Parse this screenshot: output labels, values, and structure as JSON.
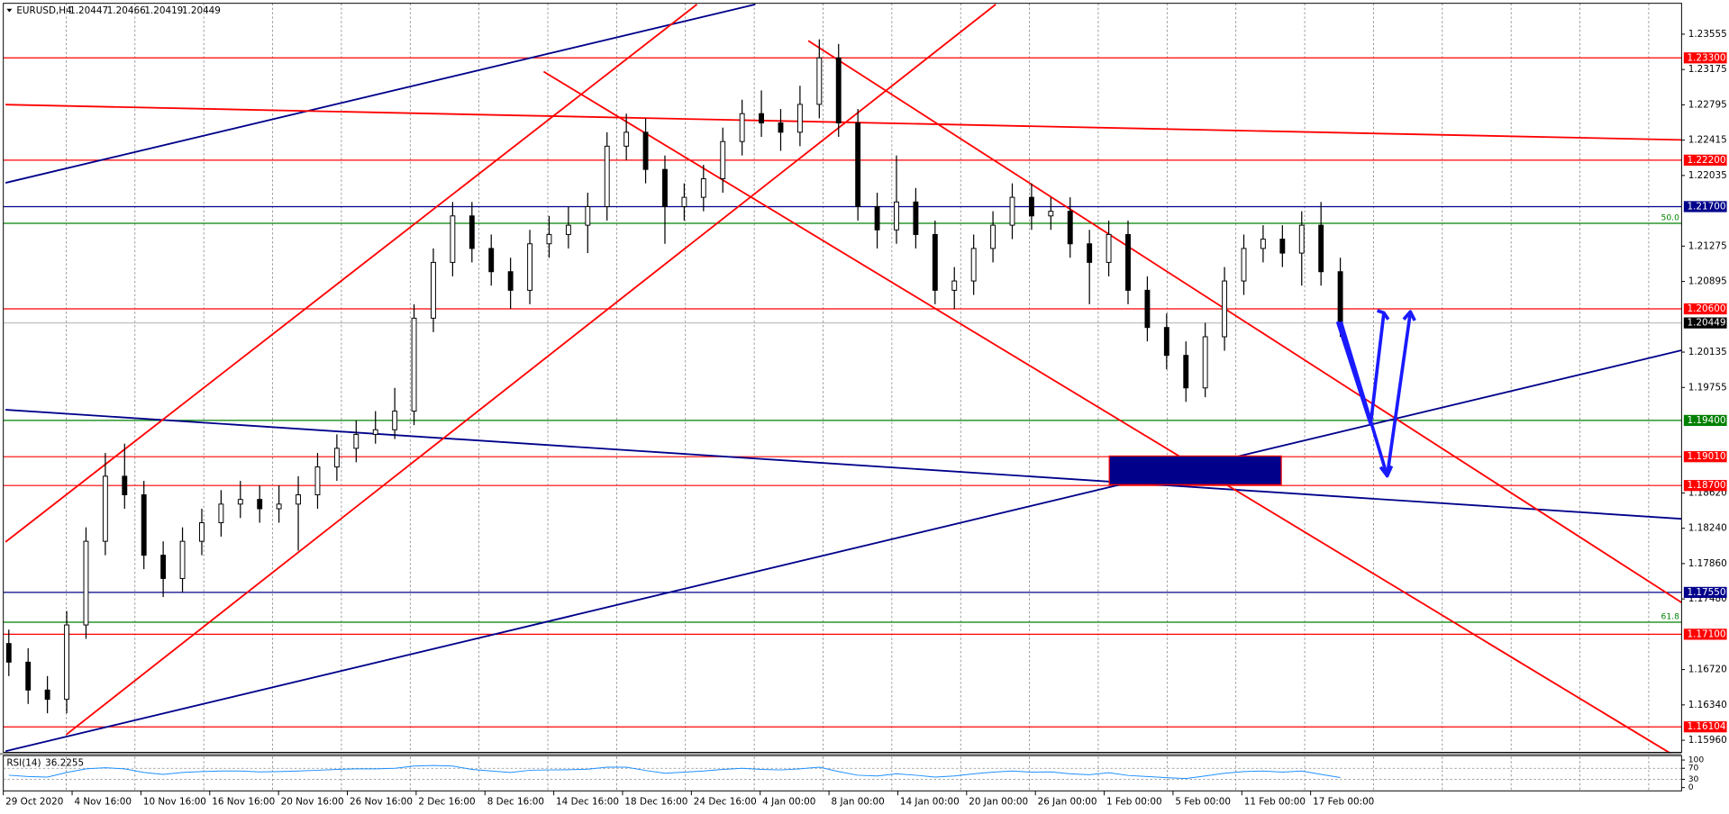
{
  "chart_data": {
    "type": "candlestick",
    "symbol": "EURUSD,H4",
    "quote": [
      1.20447,
      1.20466,
      1.20419,
      1.20449
    ],
    "open": [
      1.17,
      1.168,
      1.165,
      1.164,
      1.172,
      1.181,
      1.188,
      1.186,
      1.1795,
      1.177,
      1.181,
      1.183,
      1.185,
      1.1855,
      1.1845,
      1.185,
      1.186,
      1.189,
      1.191,
      1.1925,
      1.193,
      1.195,
      1.205,
      1.211,
      1.216,
      1.2125,
      1.21,
      1.208,
      1.213,
      1.214,
      1.215,
      1.217,
      1.2235,
      1.225,
      1.221,
      1.217,
      1.218,
      1.22,
      1.224,
      1.227,
      1.226,
      1.225,
      1.228,
      1.233,
      1.226,
      1.217,
      1.2145,
      1.2175,
      1.214,
      1.208,
      1.209,
      1.2125,
      1.215,
      1.218,
      1.216,
      1.2165,
      1.213,
      1.211,
      1.214,
      1.208,
      1.204,
      1.201,
      1.1975,
      1.203,
      1.209,
      1.2125,
      1.2135,
      1.212,
      1.215,
      1.21
    ],
    "high": [
      1.1715,
      1.1695,
      1.1665,
      1.1735,
      1.1825,
      1.1905,
      1.1915,
      1.1875,
      1.181,
      1.1825,
      1.1845,
      1.1865,
      1.1875,
      1.187,
      1.187,
      1.188,
      1.1905,
      1.1925,
      1.194,
      1.195,
      1.1975,
      1.2065,
      1.2125,
      1.2175,
      1.2175,
      1.214,
      1.2115,
      1.2145,
      1.216,
      1.217,
      1.2185,
      1.225,
      1.227,
      1.2265,
      1.2225,
      1.2195,
      1.2215,
      1.2255,
      1.2285,
      1.2295,
      1.2275,
      1.23,
      1.235,
      1.2345,
      1.2275,
      1.2185,
      1.2225,
      1.219,
      1.2155,
      1.2105,
      1.214,
      1.2165,
      1.2195,
      1.2195,
      1.218,
      1.218,
      1.2145,
      1.2155,
      1.2155,
      1.2095,
      1.2055,
      1.2025,
      1.2045,
      1.2105,
      1.214,
      1.215,
      1.215,
      1.2165,
      1.2175,
      1.2115
    ],
    "low": [
      1.1665,
      1.1635,
      1.1625,
      1.1625,
      1.1705,
      1.1795,
      1.1845,
      1.178,
      1.175,
      1.1755,
      1.1795,
      1.1815,
      1.1835,
      1.183,
      1.183,
      1.18,
      1.1845,
      1.1875,
      1.1895,
      1.1915,
      1.192,
      1.1935,
      1.2035,
      1.2095,
      1.211,
      1.2085,
      1.206,
      1.2065,
      1.2115,
      1.2125,
      1.212,
      1.2155,
      1.222,
      1.2195,
      1.213,
      1.2155,
      1.2165,
      1.2185,
      1.2225,
      1.2245,
      1.223,
      1.2235,
      1.2265,
      1.2245,
      1.2155,
      1.2125,
      1.213,
      1.2125,
      1.2065,
      1.206,
      1.2075,
      1.211,
      1.2135,
      1.2145,
      1.2145,
      1.2115,
      1.2065,
      1.2095,
      1.2065,
      1.2025,
      1.1995,
      1.196,
      1.1965,
      1.2015,
      1.2075,
      1.211,
      1.2105,
      1.2085,
      1.2085,
      1.203
    ],
    "close": [
      1.168,
      1.165,
      1.164,
      1.172,
      1.181,
      1.188,
      1.186,
      1.1795,
      1.177,
      1.181,
      1.183,
      1.185,
      1.1855,
      1.1845,
      1.185,
      1.186,
      1.189,
      1.191,
      1.1925,
      1.193,
      1.195,
      1.205,
      1.211,
      1.216,
      1.2125,
      1.21,
      1.208,
      1.213,
      1.214,
      1.215,
      1.217,
      1.2235,
      1.225,
      1.221,
      1.217,
      1.218,
      1.22,
      1.224,
      1.227,
      1.226,
      1.225,
      1.228,
      1.233,
      1.226,
      1.217,
      1.2145,
      1.2175,
      1.214,
      1.208,
      1.209,
      1.2125,
      1.215,
      1.218,
      1.216,
      1.2165,
      1.213,
      1.211,
      1.214,
      1.208,
      1.204,
      1.201,
      1.1975,
      1.203,
      1.209,
      1.2125,
      1.2135,
      1.212,
      1.215,
      1.21,
      1.2045
    ],
    "color_up": "#ffffff",
    "color_down": "#000000",
    "ylim": [
      1.1583,
      1.23887
    ],
    "yticks": [
      1.23555,
      1.23175,
      1.22795,
      1.22415,
      1.22035,
      1.21275,
      1.20895,
      1.20135,
      1.19755,
      {
        "value": 1.1862,
        "label": "1.18620"
      },
      {
        "value": 1.1824,
        "label": "1.18240"
      },
      {
        "value": 1.1786,
        "label": "1.17860"
      },
      {
        "value": 1.1748,
        "label": "1.17480"
      },
      {
        "value": 1.1672,
        "label": "1.16720"
      },
      {
        "value": 1.1634,
        "label": "1.16340"
      },
      {
        "value": 1.1596,
        "label": "1.15960"
      }
    ],
    "levels": [
      {
        "price": {
          "value": 1.233,
          "label": "1.23300"
        },
        "color": "#ff0000"
      },
      {
        "price": {
          "value": 1.222,
          "label": "1.22200"
        },
        "color": "#ff0000"
      },
      {
        "price": {
          "value": 1.217,
          "label": "1.21700"
        },
        "color": "#00008b"
      },
      {
        "price": {
          "value": 1.206,
          "label": "1.20600"
        },
        "color": "#ff0000"
      },
      {
        "price": 1.20449,
        "color": "#000000"
      },
      {
        "price": {
          "value": 1.194,
          "label": "1.19400"
        },
        "color": "#008000"
      },
      {
        "price": {
          "value": 1.1901,
          "label": "1.19010"
        },
        "color": "#ff0000"
      },
      {
        "price": {
          "value": 1.187,
          "label": "1.18700"
        },
        "color": "#ff0000"
      },
      {
        "price": {
          "value": 1.1755,
          "label": "1.17550"
        },
        "color": "#00008b"
      },
      {
        "price": {
          "value": 1.171,
          "label": "1.17100"
        },
        "color": "#ff0000"
      },
      {
        "price": 1.16104,
        "color": "#ff0000"
      }
    ],
    "fib_levels": [
      {
        "price": 1.2152,
        "label": "50.0",
        "color": "#008000"
      },
      {
        "price": 1.1723,
        "label": "61.8",
        "color": "#008000"
      }
    ],
    "time_labels": [
      "29 Oct 2020",
      "4 Nov 16:00",
      "10 Nov 16:00",
      "16 Nov 16:00",
      "20 Nov 16:00",
      "26 Nov 16:00",
      "2 Dec 16:00",
      "8 Dec 16:00",
      "14 Dec 16:00",
      "18 Dec 16:00",
      "24 Dec 16:00",
      "4 Jan 00:00",
      "8 Jan 00:00",
      "14 Jan 00:00",
      "20 Jan 00:00",
      "26 Jan 00:00",
      "1 Feb 00:00",
      "5 Feb 00:00",
      "11 Feb 00:00",
      "17 Feb 00:00"
    ],
    "grid": true,
    "rsi": {
      "label": "RSI(14)",
      "value": 36.2255,
      "color": "#1e90ff",
      "ylim": [
        0,
        100
      ],
      "yticks": [
        100,
        70,
        30,
        0
      ],
      "levels": [
        70,
        30
      ],
      "values": [
        45,
        40,
        38,
        55,
        68,
        72,
        68,
        55,
        48,
        55,
        58,
        60,
        60,
        57,
        58,
        60,
        63,
        66,
        68,
        68,
        70,
        78,
        80,
        78,
        66,
        60,
        55,
        63,
        64,
        65,
        67,
        74,
        74,
        62,
        52,
        56,
        60,
        66,
        70,
        66,
        64,
        68,
        74,
        58,
        45,
        42,
        50,
        45,
        38,
        42,
        50,
        56,
        60,
        56,
        57,
        50,
        47,
        54,
        44,
        40,
        36,
        33,
        42,
        52,
        58,
        60,
        56,
        60,
        48,
        36.2255
      ]
    }
  }
}
